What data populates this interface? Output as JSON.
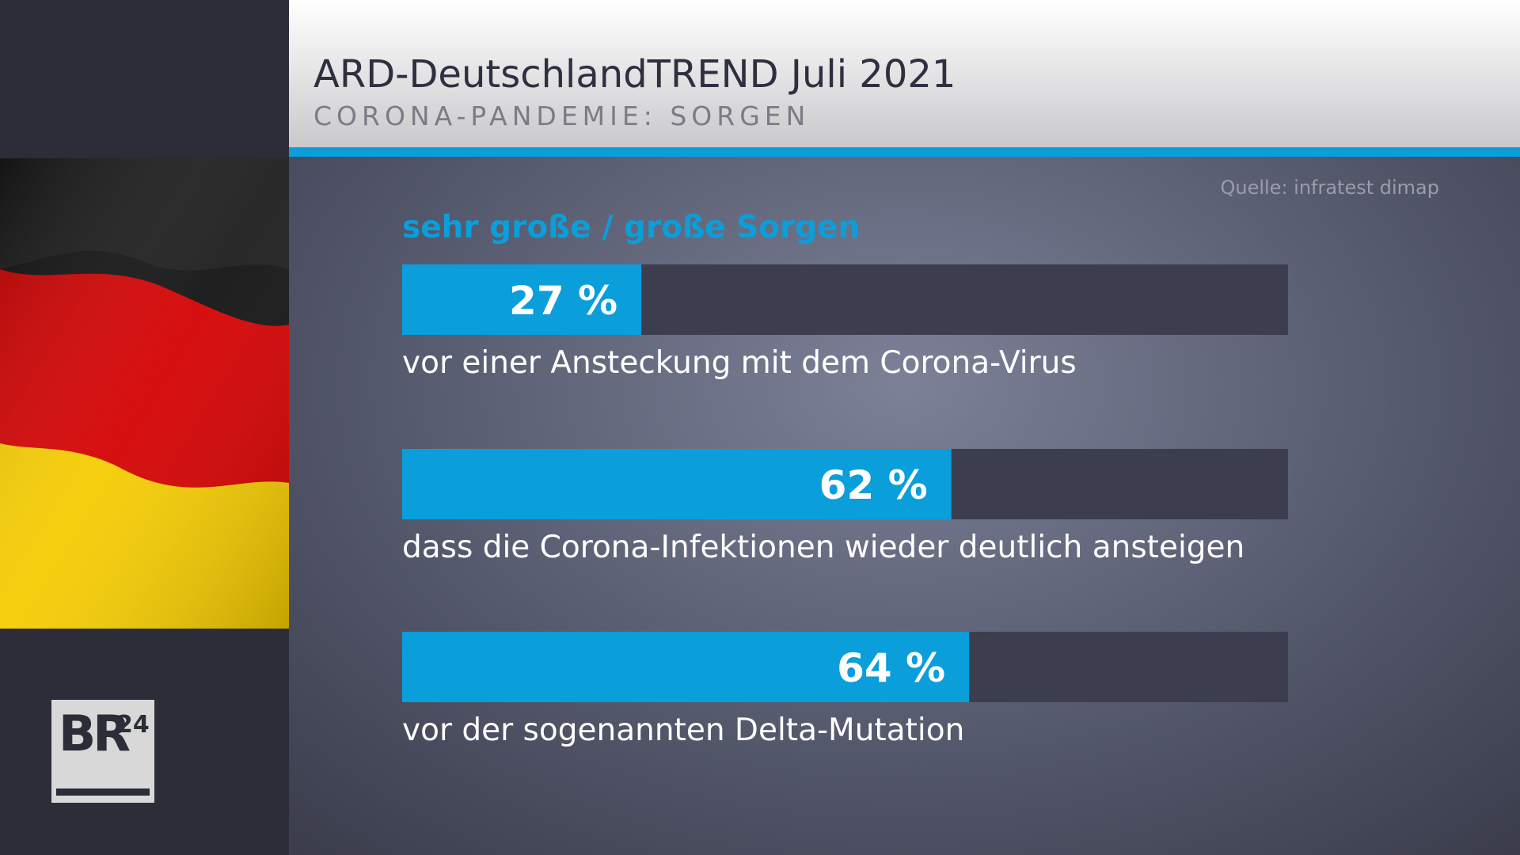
{
  "chart_data": {
    "type": "bar",
    "title": "ARD-DeutschlandTREND Juli 2021",
    "subtitle": "CORONA-PANDEMIE: SORGEN",
    "source": "Quelle: infratest dimap",
    "series_label": "sehr große / große Sorgen",
    "categories": [
      "vor einer Ansteckung mit dem Corona-Virus",
      "dass die Corona-Infektionen wieder deutlich ansteigen",
      "vor der sogenannten Delta-Mutation"
    ],
    "values": [
      27,
      62,
      64
    ],
    "value_labels": [
      "27 %",
      "62 %",
      "64 %"
    ],
    "color": "#0a9edb",
    "xlim": [
      0,
      100
    ]
  },
  "branding": {
    "logo": "BR",
    "logo_sup": "24"
  }
}
